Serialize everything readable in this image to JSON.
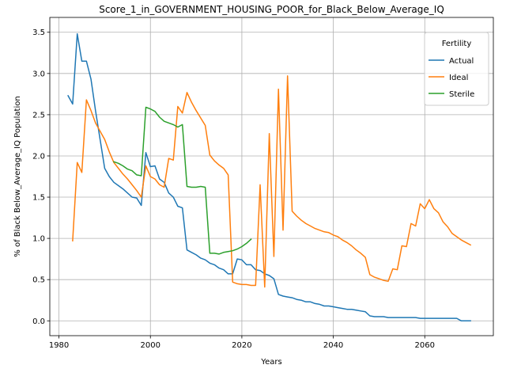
{
  "chart_data": {
    "type": "line",
    "title": "Score_1_in_GOVERNMENT_HOUSING_POOR_for_Black_Below_Average_IQ",
    "xlabel": "Years",
    "ylabel": "% of Black Below_Average_IQ Population",
    "xlim": [
      1978,
      2075
    ],
    "ylim": [
      -0.18,
      3.68
    ],
    "xticks": [
      1980,
      2000,
      2020,
      2040,
      2060
    ],
    "yticks": [
      0.0,
      0.5,
      1.0,
      1.5,
      2.0,
      2.5,
      3.0,
      3.5
    ],
    "grid": true,
    "legend": {
      "title": "Fertility",
      "placement": "top-right"
    },
    "series": [
      {
        "name": "Actual",
        "color": "#1f77b4",
        "x": [
          1982,
          1983,
          1984,
          1985,
          1986,
          1987,
          1988,
          1989,
          1990,
          1991,
          1992,
          1993,
          1994,
          1995,
          1996,
          1997,
          1998,
          1999,
          2000,
          2001,
          2002,
          2003,
          2004,
          2005,
          2006,
          2007,
          2008,
          2009,
          2010,
          2011,
          2012,
          2013,
          2014,
          2015,
          2016,
          2017,
          2018,
          2019,
          2020,
          2021,
          2022,
          2023,
          2024,
          2025,
          2026,
          2027,
          2028,
          2029,
          2030,
          2031,
          2032,
          2033,
          2034,
          2035,
          2036,
          2037,
          2038,
          2039,
          2040,
          2041,
          2042,
          2043,
          2044,
          2045,
          2046,
          2047,
          2048,
          2049,
          2050,
          2051,
          2052,
          2053,
          2054,
          2055,
          2056,
          2057,
          2058,
          2059,
          2060,
          2061,
          2062,
          2063,
          2064,
          2065,
          2066,
          2067,
          2068,
          2069,
          2070
        ],
        "y": [
          2.73,
          2.63,
          3.48,
          3.15,
          3.15,
          2.93,
          2.55,
          2.2,
          1.85,
          1.75,
          1.68,
          1.64,
          1.6,
          1.55,
          1.5,
          1.49,
          1.4,
          2.04,
          1.87,
          1.88,
          1.72,
          1.68,
          1.55,
          1.5,
          1.39,
          1.37,
          0.86,
          0.83,
          0.8,
          0.76,
          0.74,
          0.7,
          0.68,
          0.64,
          0.62,
          0.57,
          0.57,
          0.75,
          0.74,
          0.68,
          0.68,
          0.62,
          0.61,
          0.57,
          0.55,
          0.51,
          0.32,
          0.3,
          0.29,
          0.28,
          0.26,
          0.25,
          0.23,
          0.23,
          0.21,
          0.2,
          0.18,
          0.18,
          0.17,
          0.16,
          0.15,
          0.14,
          0.14,
          0.13,
          0.12,
          0.11,
          0.06,
          0.05,
          0.05,
          0.05,
          0.04,
          0.04,
          0.04,
          0.04,
          0.04,
          0.04,
          0.04,
          0.03,
          0.03,
          0.03,
          0.03,
          0.03,
          0.03,
          0.03,
          0.03,
          0.03,
          0.0,
          0.0,
          0.0
        ]
      },
      {
        "name": "Ideal",
        "color": "#ff7f0e",
        "x": [
          1983,
          1984,
          1985,
          1986,
          1987,
          1988,
          1989,
          1990,
          1991,
          1992,
          1993,
          1994,
          1995,
          1996,
          1997,
          1998,
          1999,
          2000,
          2001,
          2002,
          2003,
          2004,
          2005,
          2006,
          2007,
          2008,
          2009,
          2010,
          2011,
          2012,
          2013,
          2014,
          2015,
          2016,
          2017,
          2018,
          2019,
          2020,
          2021,
          2022,
          2023,
          2024,
          2025,
          2026,
          2027,
          2028,
          2029,
          2030,
          2031,
          2032,
          2033,
          2034,
          2035,
          2036,
          2037,
          2038,
          2039,
          2040,
          2041,
          2042,
          2043,
          2044,
          2045,
          2046,
          2047,
          2048,
          2049,
          2050,
          2051,
          2052,
          2053,
          2054,
          2055,
          2056,
          2057,
          2058,
          2059,
          2060,
          2061,
          2062,
          2063,
          2064,
          2065,
          2066,
          2067,
          2068,
          2069,
          2070
        ],
        "y": [
          0.97,
          1.92,
          1.8,
          2.68,
          2.55,
          2.4,
          2.3,
          2.2,
          2.05,
          1.92,
          1.85,
          1.78,
          1.72,
          1.65,
          1.58,
          1.5,
          1.88,
          1.75,
          1.72,
          1.65,
          1.62,
          1.97,
          1.95,
          2.6,
          2.52,
          2.77,
          2.65,
          2.55,
          2.46,
          2.37,
          2.01,
          1.94,
          1.89,
          1.85,
          1.77,
          0.47,
          0.45,
          0.44,
          0.44,
          0.43,
          0.43,
          1.65,
          0.41,
          2.27,
          0.78,
          2.81,
          1.1,
          2.97,
          1.33,
          1.27,
          1.22,
          1.18,
          1.15,
          1.12,
          1.1,
          1.08,
          1.07,
          1.04,
          1.02,
          0.98,
          0.95,
          0.91,
          0.86,
          0.82,
          0.77,
          0.56,
          0.53,
          0.51,
          0.49,
          0.48,
          0.63,
          0.62,
          0.91,
          0.9,
          1.18,
          1.15,
          1.42,
          1.36,
          1.47,
          1.36,
          1.31,
          1.2,
          1.14,
          1.06,
          1.02,
          0.98,
          0.95,
          0.92
        ],
        "_note": "values read from plot"
      },
      {
        "name": "Sterile",
        "color": "#2ca02c",
        "x": [
          1992,
          1993,
          1994,
          1995,
          1996,
          1997,
          1998,
          1999,
          2000,
          2001,
          2002,
          2003,
          2004,
          2005,
          2006,
          2007,
          2008,
          2009,
          2010,
          2011,
          2012,
          2013,
          2014,
          2015,
          2016,
          2017,
          2018,
          2019,
          2020,
          2021,
          2022
        ],
        "y": [
          1.93,
          1.91,
          1.88,
          1.84,
          1.82,
          1.77,
          1.76,
          2.59,
          2.57,
          2.54,
          2.47,
          2.42,
          2.4,
          2.38,
          2.35,
          2.38,
          1.63,
          1.62,
          1.62,
          1.63,
          1.62,
          0.82,
          0.82,
          0.81,
          0.83,
          0.84,
          0.85,
          0.87,
          0.9,
          0.94,
          0.99
        ]
      }
    ]
  }
}
